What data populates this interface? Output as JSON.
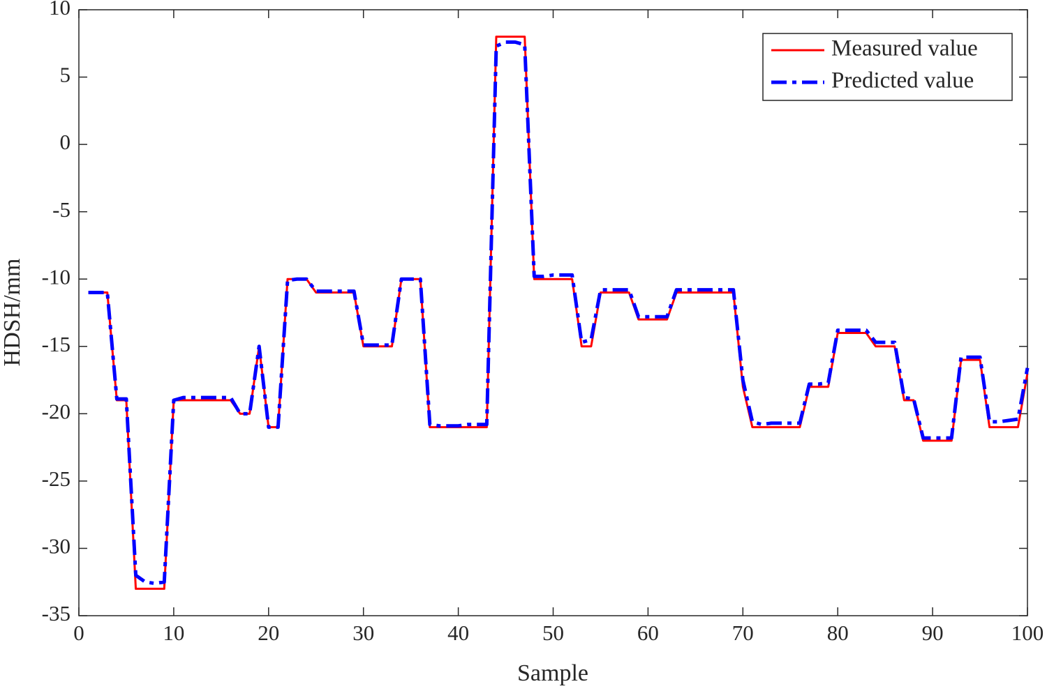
{
  "chart_data": {
    "type": "line",
    "x_label": "Sample",
    "y_label": "HDSH/mm",
    "x": [
      1,
      2,
      3,
      4,
      5,
      6,
      7,
      8,
      9,
      10,
      11,
      12,
      13,
      14,
      15,
      16,
      17,
      18,
      19,
      20,
      21,
      22,
      23,
      24,
      25,
      26,
      27,
      28,
      29,
      30,
      31,
      32,
      33,
      34,
      35,
      36,
      37,
      38,
      39,
      40,
      41,
      42,
      43,
      44,
      45,
      46,
      47,
      48,
      49,
      50,
      51,
      52,
      53,
      54,
      55,
      56,
      57,
      58,
      59,
      60,
      61,
      62,
      63,
      64,
      65,
      66,
      67,
      68,
      69,
      70,
      71,
      72,
      73,
      74,
      75,
      76,
      77,
      78,
      79,
      80,
      81,
      82,
      83,
      84,
      85,
      86,
      87,
      88,
      89,
      90,
      91,
      92,
      93,
      94,
      95,
      96,
      97,
      98,
      99,
      100
    ],
    "series": [
      {
        "name": "Measured value",
        "color": "#ff0000",
        "dash": "solid",
        "values": [
          -11,
          -11,
          -11,
          -19,
          -19,
          -33,
          -33,
          -33,
          -33,
          -19,
          -19,
          -19,
          -19,
          -19,
          -19,
          -19,
          -20,
          -20,
          -15,
          -21,
          -21,
          -10,
          -10,
          -10,
          -11,
          -11,
          -11,
          -11,
          -11,
          -15,
          -15,
          -15,
          -15,
          -10,
          -10,
          -10,
          -21,
          -21,
          -21,
          -21,
          -21,
          -21,
          -21,
          8,
          8,
          8,
          8,
          -10,
          -10,
          -10,
          -10,
          -10,
          -15,
          -15,
          -11,
          -11,
          -11,
          -11,
          -13,
          -13,
          -13,
          -13,
          -11,
          -11,
          -11,
          -11,
          -11,
          -11,
          -11,
          -18,
          -21,
          -21,
          -21,
          -21,
          -21,
          -21,
          -18,
          -18,
          -18,
          -14,
          -14,
          -14,
          -14,
          -15,
          -15,
          -15,
          -19,
          -19,
          -22,
          -22,
          -22,
          -22,
          -16,
          -16,
          -16,
          -21,
          -21,
          -21,
          -21,
          -17
        ]
      },
      {
        "name": "Predicted value",
        "color": "#0000ff",
        "dash": "dashdot",
        "values": [
          -11,
          -11,
          -11,
          -18.9,
          -18.9,
          -32,
          -32.5,
          -32.6,
          -32.5,
          -19,
          -18.8,
          -18.8,
          -18.8,
          -18.8,
          -18.8,
          -18.8,
          -20,
          -20,
          -15,
          -21,
          -21,
          -10.1,
          -10,
          -10,
          -10.9,
          -10.9,
          -10.9,
          -10.9,
          -10.9,
          -14.9,
          -14.9,
          -14.9,
          -14.9,
          -10,
          -10,
          -10,
          -20.8,
          -20.9,
          -20.9,
          -20.9,
          -20.8,
          -20.8,
          -20.8,
          7.3,
          7.6,
          7.6,
          7.4,
          -9.8,
          -9.8,
          -9.7,
          -9.7,
          -9.7,
          -14.7,
          -14.5,
          -10.8,
          -10.8,
          -10.8,
          -10.8,
          -12.8,
          -12.8,
          -12.8,
          -12.8,
          -10.8,
          -10.8,
          -10.8,
          -10.8,
          -10.8,
          -10.8,
          -10.8,
          -17.5,
          -20.6,
          -20.8,
          -20.7,
          -20.7,
          -20.7,
          -20.7,
          -17.8,
          -17.8,
          -17.7,
          -13.8,
          -13.8,
          -13.8,
          -13.8,
          -14.7,
          -14.7,
          -14.7,
          -18.8,
          -18.9,
          -21.8,
          -21.8,
          -21.8,
          -21.8,
          -15.8,
          -15.8,
          -15.8,
          -20.6,
          -20.6,
          -20.5,
          -20.4,
          -16.6
        ]
      }
    ],
    "xlim": [
      0,
      100
    ],
    "xticks": [
      0,
      10,
      20,
      30,
      40,
      50,
      60,
      70,
      80,
      90,
      100
    ],
    "ylim": [
      -35,
      10
    ],
    "yticks": [
      -35,
      -30,
      -25,
      -20,
      -15,
      -10,
      -5,
      0,
      5,
      10
    ],
    "grid": false,
    "legend": "upper right"
  }
}
